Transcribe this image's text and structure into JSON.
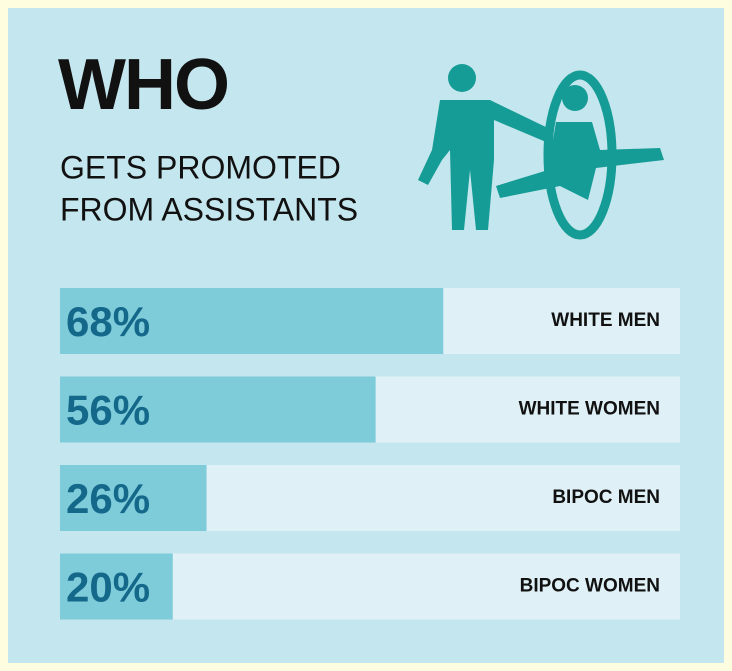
{
  "chart_data": {
    "type": "hbar",
    "title": "WHO",
    "subtitle": [
      "GETS PROMOTED",
      "FROM ASSISTANTS"
    ],
    "categories": [
      "WHITE MEN",
      "WHITE WOMEN",
      "BIPOC MEN",
      "BIPOC WOMEN"
    ],
    "values": [
      68,
      56,
      26,
      20
    ],
    "value_labels": [
      "68%",
      "56%",
      "26%",
      "20%"
    ],
    "color": "#7ecbd9",
    "xlim": [
      0,
      110
    ]
  }
}
